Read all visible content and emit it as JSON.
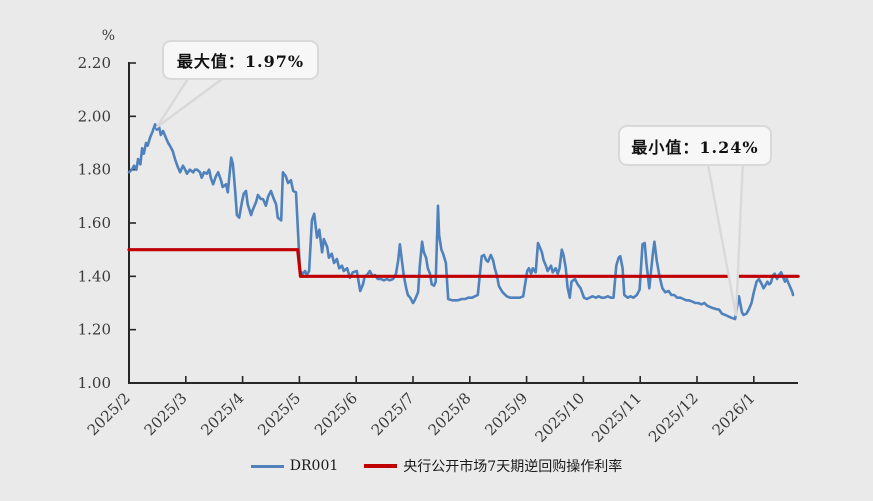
{
  "chart_data": {
    "type": "line",
    "title": "",
    "y_axis": {
      "unit": "%",
      "min": 1.0,
      "max": 2.2,
      "tick_interval": 0.2,
      "tick_labels": [
        "1.00",
        "1.20",
        "1.40",
        "1.60",
        "1.80",
        "2.00",
        "2.20"
      ]
    },
    "x_axis": {
      "note": "x values are fractional months since 2025/2 (0 = 2025/2, 11 = 2026/1)",
      "tick_labels": [
        "2025/2",
        "2025/3",
        "2025/4",
        "2025/5",
        "2025/6",
        "2025/7",
        "2025/8",
        "2025/9",
        "2025/10",
        "2025/11",
        "2025/12",
        "2026/1"
      ],
      "label_rotation_deg": -45
    },
    "xlim": [
      0,
      11.78
    ],
    "ylim": [
      1.0,
      2.2
    ],
    "grid": false,
    "legend_position": "bottom",
    "legend": [
      {
        "label": "DR001",
        "color": "#4f81bd"
      },
      {
        "label": "央行公开市场7天期逆回购操作利率",
        "color": "#c00000"
      }
    ],
    "annotations": {
      "max": {
        "label": "最大值：1.97%",
        "x": 0.46,
        "value": 1.97
      },
      "min": {
        "label": "最小值：1.24%",
        "x": 10.67,
        "value": 1.24
      }
    },
    "series": [
      {
        "name": "DR001",
        "color": "#4f81bd",
        "stroke_width": 2.6,
        "points": [
          [
            0,
            1.79
          ],
          [
            0.05,
            1.8
          ],
          [
            0.09,
            1.815
          ],
          [
            0.13,
            1.8
          ],
          [
            0.16,
            1.84
          ],
          [
            0.2,
            1.82
          ],
          [
            0.23,
            1.88
          ],
          [
            0.26,
            1.86
          ],
          [
            0.3,
            1.9
          ],
          [
            0.33,
            1.89
          ],
          [
            0.37,
            1.92
          ],
          [
            0.41,
            1.94
          ],
          [
            0.46,
            1.97
          ],
          [
            0.49,
            1.95
          ],
          [
            0.53,
            1.96
          ],
          [
            0.56,
            1.93
          ],
          [
            0.6,
            1.945
          ],
          [
            0.65,
            1.92
          ],
          [
            0.69,
            1.9
          ],
          [
            0.72,
            1.89
          ],
          [
            0.77,
            1.87
          ],
          [
            0.81,
            1.84
          ],
          [
            0.85,
            1.815
          ],
          [
            0.9,
            1.79
          ],
          [
            0.95,
            1.815
          ],
          [
            0.99,
            1.8
          ],
          [
            1.02,
            1.785
          ],
          [
            1.07,
            1.8
          ],
          [
            1.13,
            1.79
          ],
          [
            1.16,
            1.8
          ],
          [
            1.2,
            1.8
          ],
          [
            1.25,
            1.79
          ],
          [
            1.28,
            1.77
          ],
          [
            1.32,
            1.79
          ],
          [
            1.37,
            1.785
          ],
          [
            1.41,
            1.8
          ],
          [
            1.44,
            1.77
          ],
          [
            1.48,
            1.745
          ],
          [
            1.53,
            1.775
          ],
          [
            1.57,
            1.79
          ],
          [
            1.62,
            1.76
          ],
          [
            1.65,
            1.735
          ],
          [
            1.71,
            1.745
          ],
          [
            1.74,
            1.715
          ],
          [
            1.8,
            1.845
          ],
          [
            1.83,
            1.82
          ],
          [
            1.87,
            1.72
          ],
          [
            1.9,
            1.63
          ],
          [
            1.94,
            1.62
          ],
          [
            1.99,
            1.68
          ],
          [
            2.02,
            1.71
          ],
          [
            2.06,
            1.72
          ],
          [
            2.09,
            1.67
          ],
          [
            2.15,
            1.63
          ],
          [
            2.18,
            1.65
          ],
          [
            2.24,
            1.68
          ],
          [
            2.27,
            1.705
          ],
          [
            2.32,
            1.69
          ],
          [
            2.36,
            1.69
          ],
          [
            2.41,
            1.665
          ],
          [
            2.45,
            1.7
          ],
          [
            2.5,
            1.72
          ],
          [
            2.54,
            1.695
          ],
          [
            2.59,
            1.67
          ],
          [
            2.62,
            1.62
          ],
          [
            2.68,
            1.61
          ],
          [
            2.71,
            1.79
          ],
          [
            2.76,
            1.775
          ],
          [
            2.8,
            1.75
          ],
          [
            2.85,
            1.76
          ],
          [
            2.89,
            1.72
          ],
          [
            2.94,
            1.715
          ],
          [
            2.98,
            1.545
          ],
          [
            3.01,
            1.42
          ],
          [
            3.06,
            1.41
          ],
          [
            3.1,
            1.42
          ],
          [
            3.13,
            1.405
          ],
          [
            3.17,
            1.42
          ],
          [
            3.22,
            1.61
          ],
          [
            3.26,
            1.635
          ],
          [
            3.31,
            1.545
          ],
          [
            3.35,
            1.575
          ],
          [
            3.4,
            1.49
          ],
          [
            3.43,
            1.54
          ],
          [
            3.49,
            1.51
          ],
          [
            3.52,
            1.47
          ],
          [
            3.57,
            1.485
          ],
          [
            3.61,
            1.45
          ],
          [
            3.66,
            1.465
          ],
          [
            3.7,
            1.43
          ],
          [
            3.75,
            1.44
          ],
          [
            3.78,
            1.42
          ],
          [
            3.84,
            1.43
          ],
          [
            3.89,
            1.395
          ],
          [
            3.94,
            1.415
          ],
          [
            4.01,
            1.42
          ],
          [
            4.07,
            1.345
          ],
          [
            4.12,
            1.37
          ],
          [
            4.15,
            1.4
          ],
          [
            4.19,
            1.405
          ],
          [
            4.24,
            1.42
          ],
          [
            4.29,
            1.4
          ],
          [
            4.33,
            1.405
          ],
          [
            4.38,
            1.39
          ],
          [
            4.43,
            1.39
          ],
          [
            4.49,
            1.385
          ],
          [
            4.54,
            1.39
          ],
          [
            4.59,
            1.385
          ],
          [
            4.65,
            1.39
          ],
          [
            4.7,
            1.41
          ],
          [
            4.74,
            1.46
          ],
          [
            4.77,
            1.52
          ],
          [
            4.81,
            1.45
          ],
          [
            4.84,
            1.4
          ],
          [
            4.88,
            1.355
          ],
          [
            4.91,
            1.33
          ],
          [
            4.95,
            1.32
          ],
          [
            5,
            1.3
          ],
          [
            5.03,
            1.31
          ],
          [
            5.09,
            1.34
          ],
          [
            5.12,
            1.44
          ],
          [
            5.16,
            1.53
          ],
          [
            5.19,
            1.49
          ],
          [
            5.23,
            1.47
          ],
          [
            5.26,
            1.43
          ],
          [
            5.3,
            1.41
          ],
          [
            5.33,
            1.37
          ],
          [
            5.37,
            1.365
          ],
          [
            5.4,
            1.38
          ],
          [
            5.44,
            1.665
          ],
          [
            5.46,
            1.555
          ],
          [
            5.5,
            1.5
          ],
          [
            5.53,
            1.485
          ],
          [
            5.58,
            1.45
          ],
          [
            5.62,
            1.315
          ],
          [
            5.69,
            1.31
          ],
          [
            5.74,
            1.31
          ],
          [
            5.79,
            1.31
          ],
          [
            5.86,
            1.315
          ],
          [
            5.92,
            1.315
          ],
          [
            5.97,
            1.32
          ],
          [
            6.04,
            1.32
          ],
          [
            6.09,
            1.325
          ],
          [
            6.14,
            1.33
          ],
          [
            6.21,
            1.475
          ],
          [
            6.25,
            1.48
          ],
          [
            6.29,
            1.46
          ],
          [
            6.32,
            1.455
          ],
          [
            6.37,
            1.48
          ],
          [
            6.41,
            1.46
          ],
          [
            6.44,
            1.43
          ],
          [
            6.48,
            1.4
          ],
          [
            6.51,
            1.365
          ],
          [
            6.55,
            1.35
          ],
          [
            6.58,
            1.34
          ],
          [
            6.65,
            1.325
          ],
          [
            6.71,
            1.32
          ],
          [
            6.76,
            1.32
          ],
          [
            6.83,
            1.32
          ],
          [
            6.88,
            1.32
          ],
          [
            6.94,
            1.325
          ],
          [
            7.01,
            1.42
          ],
          [
            7.04,
            1.43
          ],
          [
            7.08,
            1.41
          ],
          [
            7.11,
            1.43
          ],
          [
            7.16,
            1.415
          ],
          [
            7.2,
            1.525
          ],
          [
            7.23,
            1.51
          ],
          [
            7.27,
            1.49
          ],
          [
            7.3,
            1.46
          ],
          [
            7.34,
            1.44
          ],
          [
            7.37,
            1.42
          ],
          [
            7.43,
            1.44
          ],
          [
            7.46,
            1.415
          ],
          [
            7.51,
            1.43
          ],
          [
            7.55,
            1.41
          ],
          [
            7.58,
            1.43
          ],
          [
            7.62,
            1.5
          ],
          [
            7.65,
            1.48
          ],
          [
            7.69,
            1.43
          ],
          [
            7.72,
            1.36
          ],
          [
            7.76,
            1.32
          ],
          [
            7.79,
            1.38
          ],
          [
            7.85,
            1.39
          ],
          [
            7.9,
            1.37
          ],
          [
            7.95,
            1.355
          ],
          [
            8.01,
            1.32
          ],
          [
            8.06,
            1.315
          ],
          [
            8.11,
            1.32
          ],
          [
            8.16,
            1.325
          ],
          [
            8.22,
            1.32
          ],
          [
            8.27,
            1.325
          ],
          [
            8.32,
            1.32
          ],
          [
            8.37,
            1.32
          ],
          [
            8.43,
            1.325
          ],
          [
            8.48,
            1.32
          ],
          [
            8.53,
            1.32
          ],
          [
            8.58,
            1.44
          ],
          [
            8.62,
            1.47
          ],
          [
            8.65,
            1.475
          ],
          [
            8.69,
            1.43
          ],
          [
            8.72,
            1.33
          ],
          [
            8.78,
            1.32
          ],
          [
            8.83,
            1.325
          ],
          [
            8.88,
            1.32
          ],
          [
            8.94,
            1.33
          ],
          [
            8.99,
            1.35
          ],
          [
            9.04,
            1.52
          ],
          [
            9.08,
            1.525
          ],
          [
            9.11,
            1.45
          ],
          [
            9.16,
            1.355
          ],
          [
            9.22,
            1.48
          ],
          [
            9.25,
            1.53
          ],
          [
            9.29,
            1.46
          ],
          [
            9.34,
            1.4
          ],
          [
            9.39,
            1.355
          ],
          [
            9.44,
            1.34
          ],
          [
            9.5,
            1.345
          ],
          [
            9.55,
            1.33
          ],
          [
            9.6,
            1.33
          ],
          [
            9.65,
            1.32
          ],
          [
            9.71,
            1.32
          ],
          [
            9.76,
            1.315
          ],
          [
            9.81,
            1.31
          ],
          [
            9.86,
            1.31
          ],
          [
            9.92,
            1.305
          ],
          [
            9.97,
            1.3
          ],
          [
            10.02,
            1.3
          ],
          [
            10.08,
            1.295
          ],
          [
            10.13,
            1.3
          ],
          [
            10.18,
            1.29
          ],
          [
            10.23,
            1.285
          ],
          [
            10.29,
            1.28
          ],
          [
            10.34,
            1.277
          ],
          [
            10.39,
            1.275
          ],
          [
            10.44,
            1.26
          ],
          [
            10.5,
            1.255
          ],
          [
            10.55,
            1.25
          ],
          [
            10.6,
            1.245
          ],
          [
            10.67,
            1.24
          ],
          [
            10.7,
            1.28
          ],
          [
            10.74,
            1.325
          ],
          [
            10.79,
            1.265
          ],
          [
            10.82,
            1.255
          ],
          [
            10.87,
            1.26
          ],
          [
            10.91,
            1.275
          ],
          [
            10.96,
            1.3
          ],
          [
            11,
            1.34
          ],
          [
            11.05,
            1.38
          ],
          [
            11.09,
            1.39
          ],
          [
            11.14,
            1.37
          ],
          [
            11.17,
            1.355
          ],
          [
            11.2,
            1.365
          ],
          [
            11.24,
            1.38
          ],
          [
            11.27,
            1.37
          ],
          [
            11.3,
            1.375
          ],
          [
            11.34,
            1.405
          ],
          [
            11.37,
            1.41
          ],
          [
            11.41,
            1.39
          ],
          [
            11.44,
            1.405
          ],
          [
            11.48,
            1.415
          ],
          [
            11.51,
            1.4
          ],
          [
            11.55,
            1.38
          ],
          [
            11.58,
            1.39
          ],
          [
            11.61,
            1.375
          ],
          [
            11.65,
            1.355
          ],
          [
            11.68,
            1.34
          ],
          [
            11.69,
            1.33
          ]
        ]
      },
      {
        "name": "央行公开市场7天期逆回购操作利率",
        "color": "#c00000",
        "stroke_width": 3.2,
        "points": [
          [
            0,
            1.5
          ],
          [
            2.97,
            1.5
          ],
          [
            3.02,
            1.4
          ],
          [
            11.78,
            1.4
          ]
        ]
      }
    ]
  },
  "colors": {
    "background": "#eaeaea",
    "axis": "#262626",
    "tick_label": "#3a3a3a",
    "dr001": "#4f81bd",
    "policy_rate": "#c00000",
    "callout_fill": "#f7f7f7",
    "callout_border": "#d9d9d9",
    "callout_tail_fill": "#ececec"
  }
}
